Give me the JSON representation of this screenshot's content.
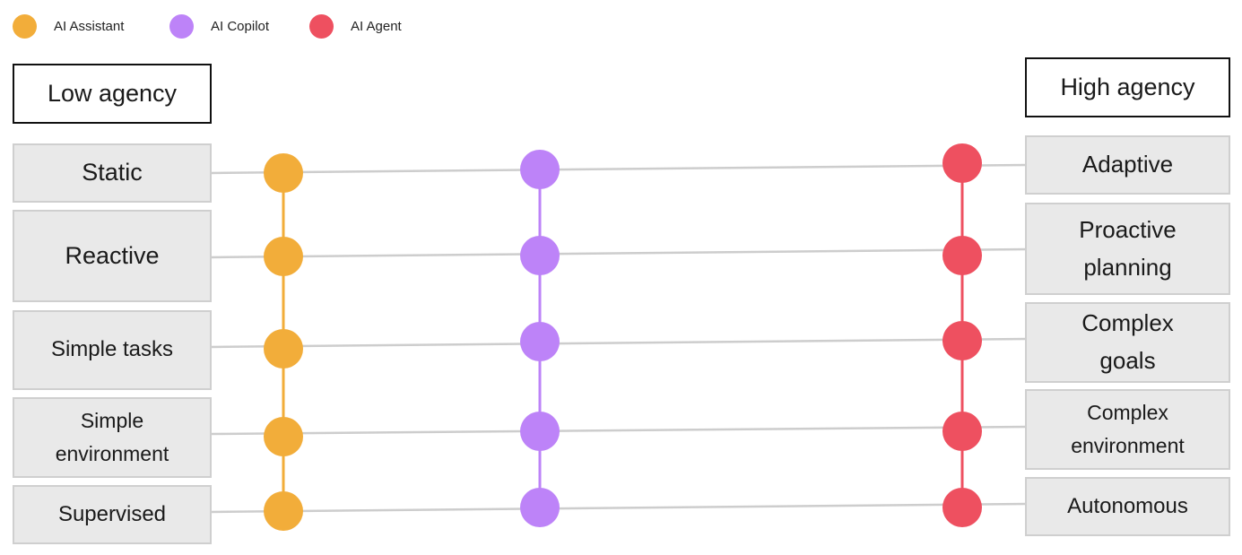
{
  "legend": [
    {
      "label": "AI Assistant",
      "color": "#f2ad3a"
    },
    {
      "label": "AI Copilot",
      "color": "#bd83f8"
    },
    {
      "label": "AI Agent",
      "color": "#ee5060"
    }
  ],
  "headings": {
    "low": "Low agency",
    "high": "High agency"
  },
  "low_traits": [
    "Static",
    "Reactive",
    "Simple tasks",
    "Simple environment",
    "Supervised"
  ],
  "high_traits": [
    "Adaptive",
    "Proactive planning",
    "Complex goals",
    "Complex environment",
    "Autonomous"
  ],
  "colors": {
    "row_line": "#cdcdcd",
    "box_fill": "#e9e9e9",
    "box_border": "#cfcfcf"
  }
}
